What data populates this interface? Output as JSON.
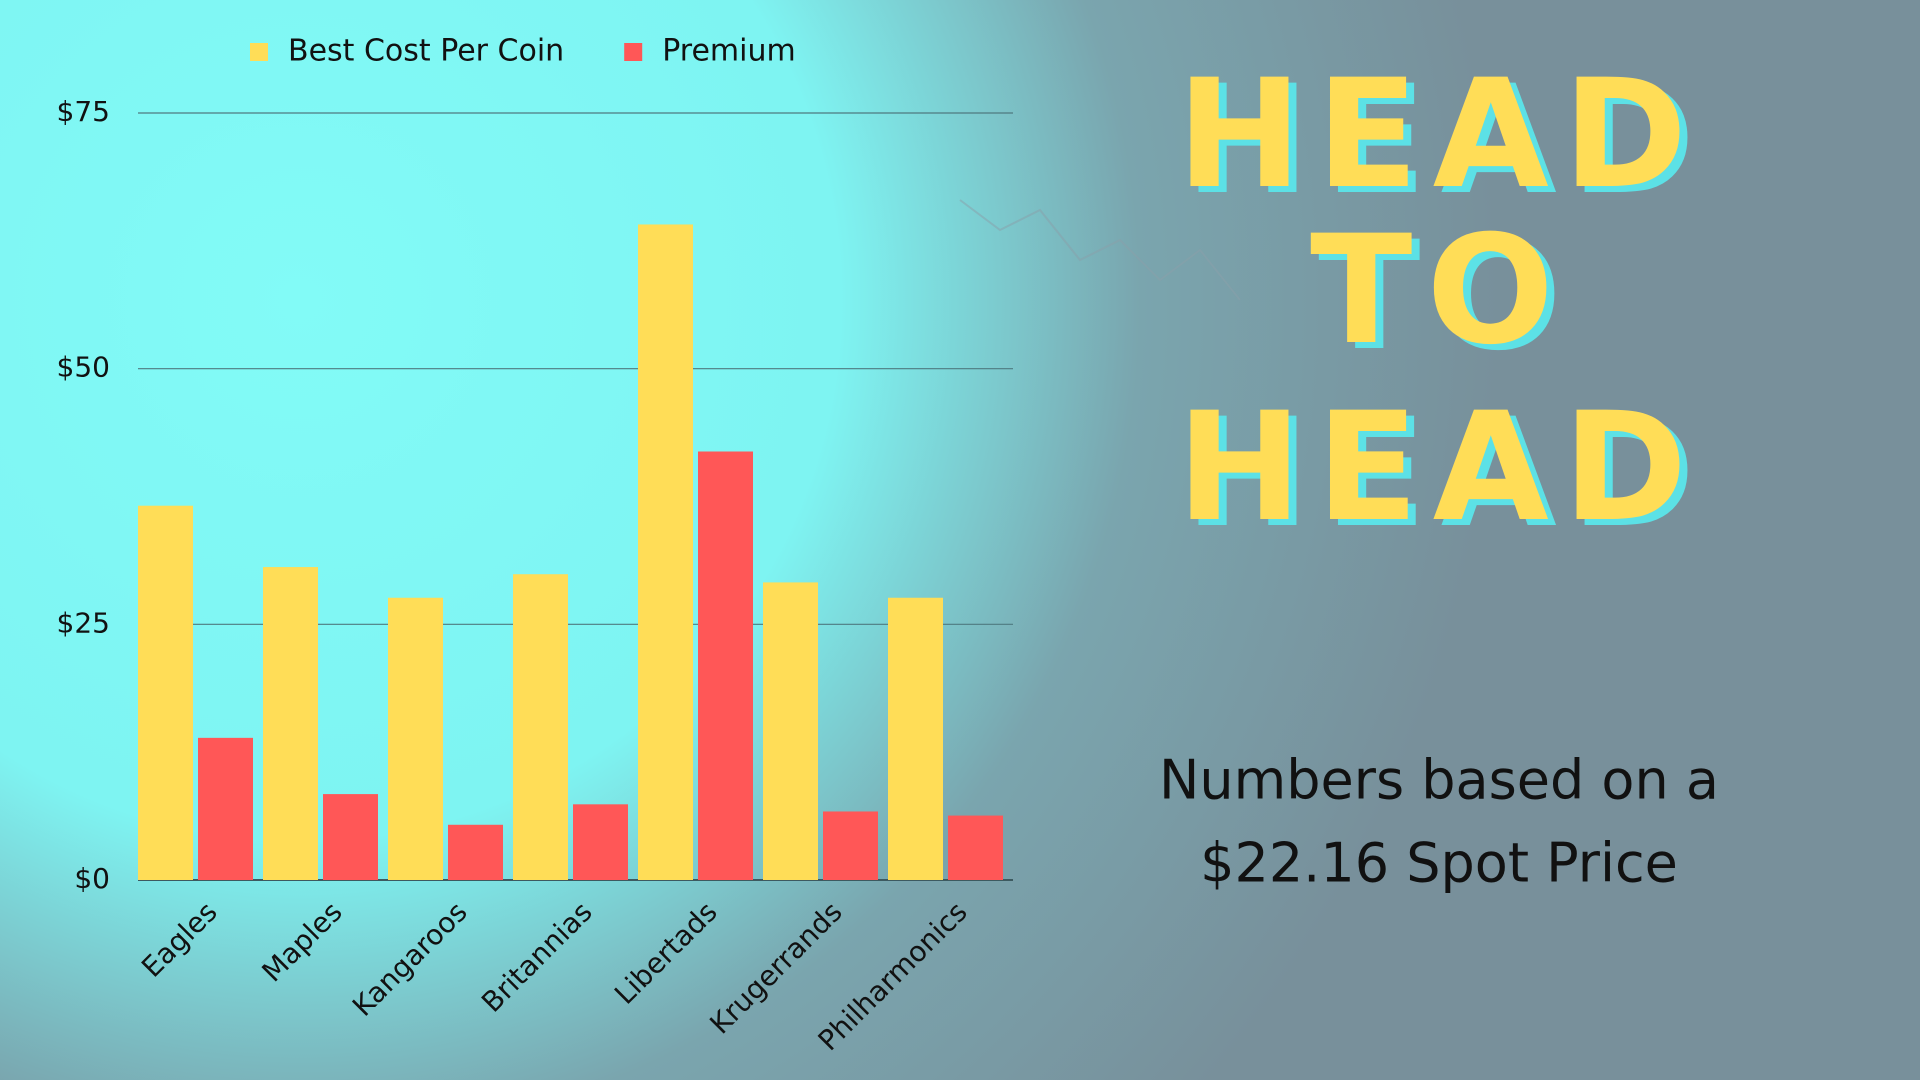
{
  "chart_data": {
    "type": "bar",
    "categories": [
      "Eagles",
      "Maples",
      "Kangaroos",
      "Britannias",
      "Libertads",
      "Krugerrands",
      "Philharmonics"
    ],
    "series": [
      {
        "name": "Best Cost Per Coin",
        "color": "#ffdd57",
        "values": [
          36.6,
          30.6,
          27.6,
          29.9,
          64.1,
          29.1,
          27.6
        ]
      },
      {
        "name": "Premium",
        "color": "#ff5757",
        "values": [
          13.9,
          8.4,
          5.4,
          7.4,
          41.9,
          6.7,
          6.3
        ]
      }
    ],
    "ylim": [
      0,
      75
    ],
    "yticks": [
      {
        "value": 0,
        "label": "$0"
      },
      {
        "value": 25,
        "label": "$25"
      },
      {
        "value": 50,
        "label": "$50"
      },
      {
        "value": 75,
        "label": "$75"
      }
    ],
    "grid": true,
    "legend": "top"
  },
  "headline": {
    "lines": [
      "HEAD",
      "TO",
      "HEAD"
    ],
    "subtitle_lines": [
      "Numbers based on a",
      "$22.16 Spot Price"
    ]
  }
}
